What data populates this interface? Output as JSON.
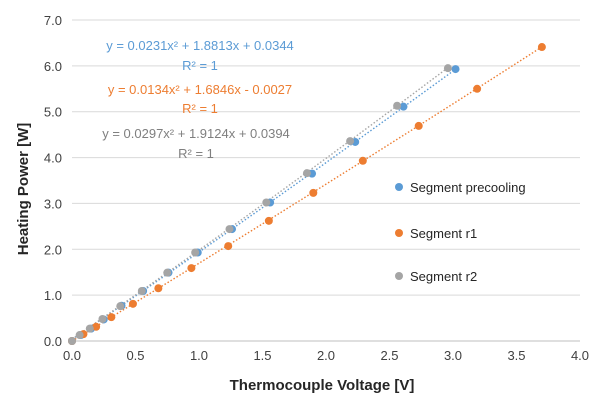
{
  "chart_data": {
    "type": "scatter",
    "xlabel": "Thermocouple Voltage [V]",
    "ylabel": "Heating Power [W]",
    "xlim": [
      0,
      4.0
    ],
    "ylim": [
      0,
      7.0
    ],
    "xticks": [
      "0.0",
      "0.5",
      "1.0",
      "1.5",
      "2.0",
      "2.5",
      "3.0",
      "3.5",
      "4.0"
    ],
    "yticks": [
      "0.0",
      "1.0",
      "2.0",
      "3.0",
      "4.0",
      "5.0",
      "6.0",
      "7.0"
    ],
    "grid": "horizontal",
    "legend_position": "right",
    "series": [
      {
        "name": "Segment precooling",
        "color": "#5b9bd5",
        "trendline": {
          "equation": "y = 0.0231x² + 1.8813x + 0.0344",
          "r2": "R² = 1",
          "coefficients": [
            0.0231,
            1.8813,
            0.0344
          ]
        },
        "x": [
          0.0,
          0.07,
          0.15,
          0.25,
          0.39,
          0.56,
          0.76,
          0.99,
          1.26,
          1.56,
          1.89,
          2.23,
          2.61,
          3.02
        ],
        "y": [
          0.0,
          0.13,
          0.27,
          0.47,
          0.77,
          1.09,
          1.49,
          1.93,
          2.44,
          3.02,
          3.65,
          4.34,
          5.11,
          5.93
        ]
      },
      {
        "name": "Segment r1",
        "color": "#ed7d31",
        "trendline": {
          "equation": "y = 0.0134x² + 1.6846x - 0.0027",
          "r2": "R² = 1",
          "coefficients": [
            0.0134,
            1.6846,
            -0.0027
          ]
        },
        "x": [
          0.0,
          0.09,
          0.19,
          0.31,
          0.48,
          0.68,
          0.94,
          1.23,
          1.55,
          1.9,
          2.29,
          2.73,
          3.19,
          3.7
        ],
        "y": [
          0.0,
          0.15,
          0.31,
          0.52,
          0.81,
          1.15,
          1.59,
          2.07,
          2.62,
          3.23,
          3.93,
          4.69,
          5.5,
          6.41
        ]
      },
      {
        "name": "Segment r2",
        "color": "#a5a5a5",
        "trendline": {
          "equation": "y = 0.0297x² + 1.9124x + 0.0394",
          "r2": "R² = 1",
          "coefficients": [
            0.0297,
            1.9124,
            0.0394
          ]
        },
        "x": [
          0.0,
          0.06,
          0.14,
          0.24,
          0.38,
          0.55,
          0.75,
          0.97,
          1.24,
          1.53,
          1.85,
          2.19,
          2.56,
          2.96
        ],
        "y": [
          0.0,
          0.13,
          0.27,
          0.48,
          0.76,
          1.09,
          1.49,
          1.93,
          2.44,
          3.02,
          3.66,
          4.36,
          5.13,
          5.95
        ]
      }
    ]
  }
}
